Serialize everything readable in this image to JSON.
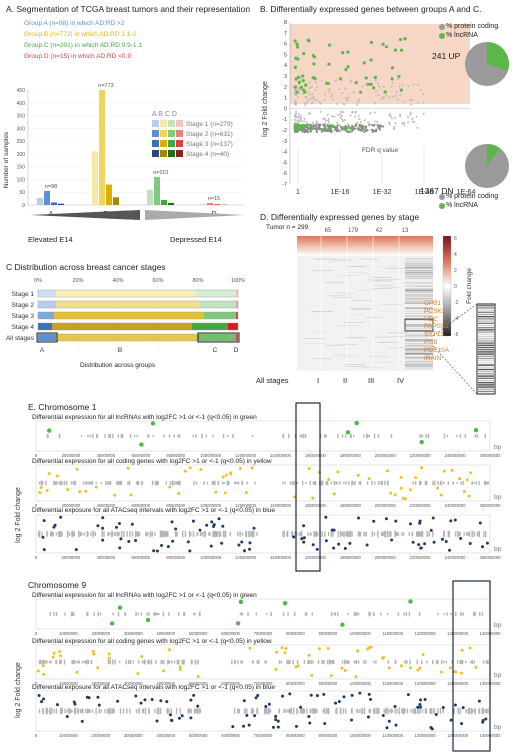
{
  "panelA": {
    "title": "A. Segmentation of TCGA breast tumors and their representation",
    "groups": [
      {
        "text": "Group A (n=98)  in which AD:RD >2",
        "color": "#5b8fd6"
      },
      {
        "text": "Group B (n=773) in which AD:RD 1.1-2",
        "color": "#e6b800"
      },
      {
        "text": "Group C (n=201) in which AD:RD 0.9-1.1",
        "color": "#3fa83f"
      },
      {
        "text": "Group D (n=15) in which AD:RD <0.9",
        "color": "#d94040"
      }
    ],
    "legend_header": "A B C D",
    "legend_stages": [
      "Stage 1 (n=279)",
      "Stage 2 (n=631)",
      "Stage 3 (n=137)",
      "Stage 4 (n=40)"
    ],
    "bottom_left": "Elevated E14",
    "bottom_right": "Depressed E14"
  },
  "panelB": {
    "title": "B.  Differentially expressed genes between groups A and C.",
    "up_label": "241 UP",
    "dn_label": "1367 DN",
    "legend": [
      "% protein coding",
      "% lncRNA"
    ],
    "pie_up_lnc_fraction": 0.3,
    "pie_dn_lnc_fraction": 0.1
  },
  "panelC": {
    "title": "C  Distribution across breast cancer stages",
    "rows": [
      "Stage 1",
      "Stage 2",
      "Stage 3",
      "Stage 4",
      "All stages"
    ],
    "ticks": [
      "0%",
      "20%",
      "40%",
      "60%",
      "80%",
      "100%"
    ],
    "xlabel": "Distribution across groups",
    "segment_labels": [
      "A",
      "B",
      "C",
      "D"
    ],
    "data": [
      {
        "A": 0.09,
        "B": 0.7,
        "C": 0.2,
        "D": 0.01
      },
      {
        "A": 0.09,
        "B": 0.72,
        "C": 0.18,
        "D": 0.01
      },
      {
        "A": 0.08,
        "B": 0.75,
        "C": 0.16,
        "D": 0.01
      },
      {
        "A": 0.07,
        "B": 0.7,
        "C": 0.18,
        "D": 0.05
      },
      {
        "A": 0.09,
        "B": 0.71,
        "C": 0.19,
        "D": 0.01
      }
    ]
  },
  "panelD": {
    "title": "D.  Differentially expressed genes by stage",
    "tumor_label": "Tumor n = 299",
    "counts": [
      "65",
      "179",
      "42",
      "13"
    ],
    "columns": [
      "All stages",
      "I",
      "II",
      "III",
      "IV"
    ],
    "colorbar_label": "Fold change",
    "colorbar_ticks": [
      "6",
      "4",
      "2",
      "0",
      "-2",
      "-4",
      "-6"
    ],
    "genes": [
      "CPB1",
      "PCSK1",
      "HDC",
      "PAPSS2",
      "SYT13",
      "PI15",
      "PDE10A",
      "IRAIN"
    ]
  },
  "panelE": {
    "title": "E.  Chromosome 1",
    "chr9_title": "Chromosome 9",
    "tracks": {
      "lnc": "Differential expression for all lncRNAs with log2FC >1 or <-1 (q<0.05) in green",
      "coding": "Differential expression for all coding genes with log2FC >1 or <-1 (q<0.05) in yellow",
      "atac": "Differential exposure for all ATACseq intervals with log2FC >1 or <-1 (q<0.05) in blue"
    },
    "ylabel": "log 2 Fold change",
    "unit": "bp"
  }
}
